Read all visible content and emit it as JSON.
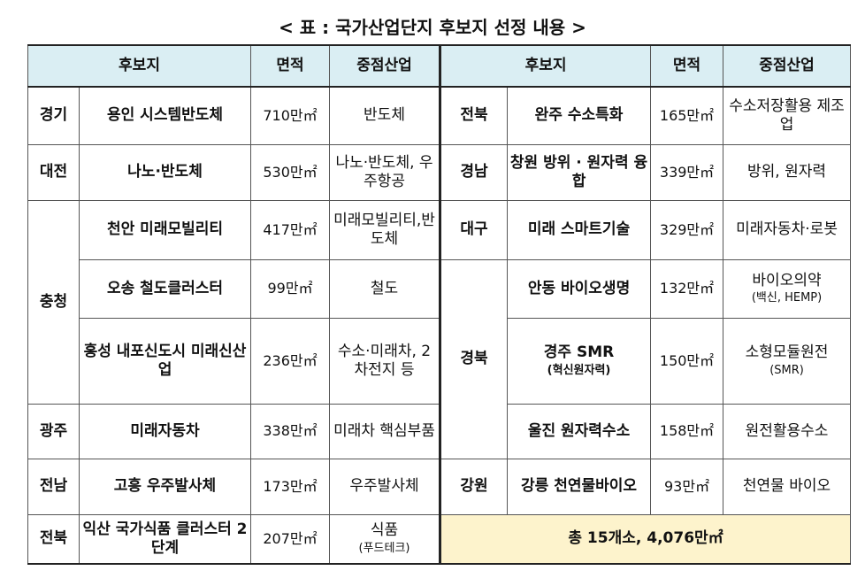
{
  "title": "< 표 : 국가산업단지 후보지 선정 내용 >",
  "headers": {
    "site": "후보지",
    "area": "면적",
    "industry": "중점산업"
  },
  "left": [
    {
      "region": "경기",
      "site": "용인 시스템반도체",
      "area": "710만㎡",
      "industry": "반도체"
    },
    {
      "region": "대전",
      "site": "나노·반도체",
      "area": "530만㎡",
      "industry": "나노·반도체, 우주항공"
    },
    {
      "region": "충청",
      "site": "천안 미래모빌리티",
      "area": "417만㎡",
      "industry": "미래모빌리티,반도체"
    },
    {
      "site": "오송 철도클러스터",
      "area": "99만㎡",
      "industry": "철도"
    },
    {
      "site": "홍성 내포신도시 미래신산업",
      "area": "236만㎡",
      "industry": "수소·미래차, 2차전지 등"
    },
    {
      "region": "광주",
      "site": "미래자동차",
      "area": "338만㎡",
      "industry": "미래차 핵심부품"
    },
    {
      "region": "전남",
      "site": "고흥 우주발사체",
      "area": "173만㎡",
      "industry": "우주발사체"
    },
    {
      "region": "전북",
      "site": "익산 국가식품 클러스터 2단계",
      "area": "207만㎡",
      "industry": "식품",
      "industry_sub": "(푸드테크)"
    }
  ],
  "right": [
    {
      "region": "전북",
      "site": "완주 수소특화",
      "area": "165만㎡",
      "industry": "수소저장활용 제조업"
    },
    {
      "region": "경남",
      "site": "창원 방위 · 원자력 융합",
      "area": "339만㎡",
      "industry": "방위, 원자력"
    },
    {
      "region": "대구",
      "site": "미래 스마트기술",
      "area": "329만㎡",
      "industry": "미래자동차·로봇"
    },
    {
      "region": "경북",
      "site": "안동 바이오생명",
      "area": "132만㎡",
      "industry": "바이오의약",
      "industry_sub": "(백신, HEMP)"
    },
    {
      "site": "경주 SMR",
      "site_sub": "(혁신원자력)",
      "area": "150만㎡",
      "industry": "소형모듈원전",
      "industry_sub": "(SMR)"
    },
    {
      "site": "울진 원자력수소",
      "area": "158만㎡",
      "industry": "원전활용수소"
    },
    {
      "region": "강원",
      "site": "강릉 천연물바이오",
      "area": "93만㎡",
      "industry": "천연물 바이오"
    }
  ],
  "total": "총 15개소, 4,076만㎡"
}
